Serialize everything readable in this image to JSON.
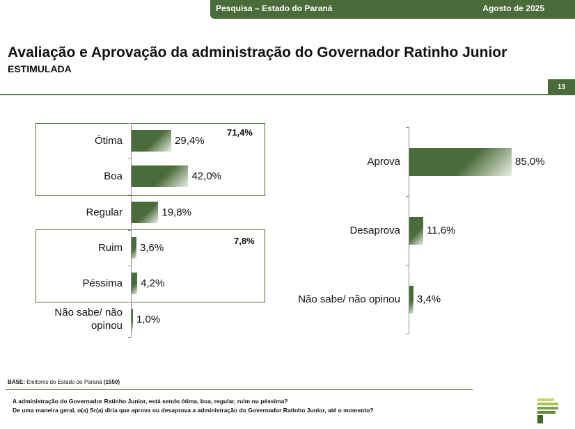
{
  "header": {
    "survey": "Pesquisa – Estado do Paraná",
    "date": "Agosto de 2025"
  },
  "title": "Avaliação e Aprovação da administração do Governador Ratinho Junior",
  "subtitle": "ESTIMULADA",
  "page_number": "13",
  "groups": {
    "positive": "71,4%",
    "negative": "7,8%"
  },
  "footer": {
    "base_label": "BASE:",
    "base_text": "Eleitores do Estado do Paraná",
    "base_count": "(1550)",
    "question1": "A administração do Governador Ratinho Junior, está sendo ótima, boa, regular, ruim ou péssima?",
    "question2": "De uma maneira geral, o(a) Sr(a) diria que aprova ou desaprova a administração do Governador Ratinho Junior, até o momento?"
  },
  "colors": {
    "bar": "#4a6b3a",
    "accent": "#4a6b3a"
  },
  "chart_data": [
    {
      "type": "bar",
      "orientation": "horizontal",
      "categories": [
        "Ótima",
        "Boa",
        "Regular",
        "Ruim",
        "Péssima",
        "Não sabe/ não opinou"
      ],
      "values": [
        29.4,
        42.0,
        19.8,
        3.6,
        4.2,
        1.0
      ],
      "labels": [
        "29,4%",
        "42,0%",
        "19,8%",
        "3,6%",
        "4,2%",
        "1,0%"
      ]
    },
    {
      "type": "bar",
      "orientation": "horizontal",
      "categories": [
        "Aprova",
        "Desaprova",
        "Não sabe/ não opinou"
      ],
      "values": [
        85.0,
        11.6,
        3.4
      ],
      "labels": [
        "85,0%",
        "11,6%",
        "3,4%"
      ]
    }
  ]
}
